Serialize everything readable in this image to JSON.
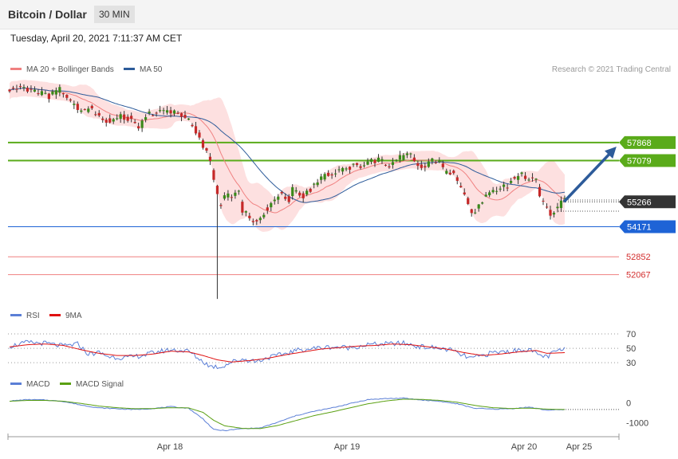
{
  "header": {
    "title": "Bitcoin / Dollar",
    "timeframe": "30 MIN",
    "datetime": "Tuesday, April 20, 2021 7:11:37 AM CET"
  },
  "credit": "Research © 2021 Trading Central",
  "colors": {
    "ma20": "#f08080",
    "ma50": "#2d5b9a",
    "bollinger_fill": "#fde0e0",
    "candle_up": "#3a8a1a",
    "candle_down": "#c62828",
    "resistance": "#5aab1a",
    "pivot": "#1e63d6",
    "support": "#f08080",
    "last_price": "#333333",
    "rsi": "#5b7fd6",
    "rsi_ma": "#e01010",
    "macd": "#5b7fd6",
    "macd_signal": "#5aa012",
    "arrow": "#2d5b9a"
  },
  "chart_data": [
    {
      "type": "candlestick",
      "legend": [
        {
          "label": "MA 20 + Bollinger Bands",
          "color": "#f08080"
        },
        {
          "label": "MA 50",
          "color": "#2d5b9a"
        }
      ],
      "x_ticks": [
        "Apr 18",
        "Apr 19",
        "Apr 20",
        "Apr 25"
      ],
      "ylim": [
        50900,
        60700
      ],
      "levels": [
        {
          "value": 57868,
          "label": "57868",
          "kind": "resistance"
        },
        {
          "value": 57079,
          "label": "57079",
          "kind": "resistance"
        },
        {
          "value": 55266,
          "label": "55266",
          "kind": "last"
        },
        {
          "value": 54171,
          "label": "54171",
          "kind": "pivot"
        },
        {
          "value": 52852,
          "label": "52852",
          "kind": "support"
        },
        {
          "value": 52067,
          "label": "52067",
          "kind": "support"
        }
      ],
      "close_path": [
        [
          0,
          60200
        ],
        [
          8,
          60300
        ],
        [
          14,
          60100
        ],
        [
          22,
          59900
        ],
        [
          28,
          60200
        ],
        [
          34,
          59700
        ],
        [
          40,
          59200
        ],
        [
          45,
          59400
        ],
        [
          50,
          58950
        ],
        [
          56,
          58800
        ],
        [
          62,
          59000
        ],
        [
          68,
          58900
        ],
        [
          72,
          58500
        ],
        [
          76,
          59050
        ],
        [
          80,
          59150
        ],
        [
          88,
          59300
        ],
        [
          94,
          59100
        ],
        [
          100,
          58900
        ],
        [
          104,
          58350
        ],
        [
          108,
          57750
        ],
        [
          112,
          57050
        ],
        [
          114,
          56200
        ],
        [
          116,
          55500
        ],
        [
          118,
          55000
        ],
        [
          120,
          55600
        ],
        [
          124,
          55400
        ],
        [
          128,
          55800
        ],
        [
          130,
          54900
        ],
        [
          134,
          54600
        ],
        [
          138,
          54400
        ],
        [
          140,
          54600
        ],
        [
          144,
          55000
        ],
        [
          148,
          55400
        ],
        [
          152,
          55650
        ],
        [
          156,
          55300
        ],
        [
          158,
          55900
        ],
        [
          164,
          55500
        ],
        [
          168,
          55800
        ],
        [
          172,
          56200
        ],
        [
          176,
          56400
        ],
        [
          180,
          56500
        ],
        [
          184,
          56650
        ],
        [
          188,
          56700
        ],
        [
          192,
          56900
        ],
        [
          196,
          56700
        ],
        [
          200,
          57000
        ],
        [
          206,
          57100
        ],
        [
          212,
          56900
        ],
        [
          218,
          57200
        ],
        [
          224,
          57300
        ],
        [
          228,
          56850
        ],
        [
          232,
          56800
        ],
        [
          236,
          57100
        ],
        [
          240,
          56950
        ],
        [
          244,
          56500
        ],
        [
          248,
          56600
        ],
        [
          252,
          55900
        ],
        [
          256,
          55300
        ],
        [
          258,
          54650
        ],
        [
          262,
          55100
        ],
        [
          266,
          55550
        ],
        [
          270,
          55800
        ],
        [
          274,
          55900
        ],
        [
          278,
          56000
        ],
        [
          282,
          56300
        ],
        [
          286,
          56450
        ],
        [
          290,
          56200
        ],
        [
          294,
          56350
        ],
        [
          296,
          55500
        ],
        [
          300,
          55000
        ],
        [
          302,
          54600
        ],
        [
          306,
          55000
        ],
        [
          310,
          55400
        ]
      ]
    },
    {
      "type": "line",
      "legend": [
        {
          "label": "RSI",
          "color": "#5b7fd6"
        },
        {
          "label": "9MA",
          "color": "#e01010"
        }
      ],
      "ylim": [
        18,
        80
      ],
      "y_ticks": [
        "70",
        "50",
        "30"
      ],
      "y_tick_values": [
        70,
        50,
        30
      ],
      "rsi_path": [
        [
          0,
          53
        ],
        [
          10,
          58
        ],
        [
          20,
          57
        ],
        [
          30,
          53
        ],
        [
          38,
          56
        ],
        [
          44,
          42
        ],
        [
          50,
          44
        ],
        [
          56,
          38
        ],
        [
          66,
          37
        ],
        [
          76,
          41
        ],
        [
          82,
          45
        ],
        [
          90,
          48
        ],
        [
          100,
          46
        ],
        [
          106,
          35
        ],
        [
          112,
          25
        ],
        [
          118,
          24
        ],
        [
          124,
          31
        ],
        [
          130,
          35
        ],
        [
          138,
          32
        ],
        [
          144,
          37
        ],
        [
          150,
          40
        ],
        [
          160,
          47
        ],
        [
          170,
          50
        ],
        [
          180,
          52
        ],
        [
          190,
          51
        ],
        [
          200,
          55
        ],
        [
          210,
          56
        ],
        [
          220,
          57
        ],
        [
          230,
          52
        ],
        [
          236,
          51
        ],
        [
          246,
          48
        ],
        [
          252,
          41
        ],
        [
          258,
          36
        ],
        [
          264,
          40
        ],
        [
          270,
          44
        ],
        [
          280,
          46
        ],
        [
          290,
          49
        ],
        [
          294,
          42
        ],
        [
          300,
          38
        ],
        [
          306,
          47
        ],
        [
          310,
          48
        ]
      ],
      "ma_path": [
        [
          0,
          52
        ],
        [
          10,
          55
        ],
        [
          20,
          56
        ],
        [
          30,
          54
        ],
        [
          40,
          48
        ],
        [
          50,
          43
        ],
        [
          60,
          40
        ],
        [
          70,
          40
        ],
        [
          80,
          42
        ],
        [
          90,
          46
        ],
        [
          100,
          45
        ],
        [
          108,
          40
        ],
        [
          116,
          34
        ],
        [
          124,
          31
        ],
        [
          134,
          33
        ],
        [
          144,
          36
        ],
        [
          154,
          41
        ],
        [
          164,
          45
        ],
        [
          174,
          49
        ],
        [
          184,
          51
        ],
        [
          194,
          53
        ],
        [
          204,
          54
        ],
        [
          214,
          56
        ],
        [
          224,
          55
        ],
        [
          234,
          52
        ],
        [
          244,
          49
        ],
        [
          254,
          44
        ],
        [
          264,
          40
        ],
        [
          274,
          42
        ],
        [
          284,
          45
        ],
        [
          294,
          47
        ],
        [
          300,
          43
        ],
        [
          310,
          44
        ]
      ]
    },
    {
      "type": "line",
      "legend": [
        {
          "label": "MACD",
          "color": "#5b7fd6"
        },
        {
          "label": "MACD Signal",
          "color": "#5aa012"
        }
      ],
      "ylim": [
        -1600,
        600
      ],
      "y_ticks": [
        "0",
        "-1000"
      ],
      "y_tick_values": [
        0,
        -1000
      ],
      "macd_path": [
        [
          0,
          80
        ],
        [
          10,
          150
        ],
        [
          20,
          130
        ],
        [
          30,
          60
        ],
        [
          40,
          -120
        ],
        [
          50,
          -260
        ],
        [
          60,
          -300
        ],
        [
          70,
          -340
        ],
        [
          80,
          -290
        ],
        [
          90,
          -200
        ],
        [
          100,
          -280
        ],
        [
          108,
          -800
        ],
        [
          114,
          -1330
        ],
        [
          120,
          -1380
        ],
        [
          130,
          -1280
        ],
        [
          140,
          -1250
        ],
        [
          150,
          -960
        ],
        [
          160,
          -640
        ],
        [
          170,
          -430
        ],
        [
          180,
          -260
        ],
        [
          190,
          -50
        ],
        [
          200,
          150
        ],
        [
          210,
          200
        ],
        [
          220,
          220
        ],
        [
          230,
          130
        ],
        [
          240,
          70
        ],
        [
          250,
          -60
        ],
        [
          260,
          -280
        ],
        [
          270,
          -320
        ],
        [
          280,
          -300
        ],
        [
          290,
          -220
        ],
        [
          300,
          -370
        ],
        [
          310,
          -350
        ]
      ],
      "signal_path": [
        [
          0,
          70
        ],
        [
          10,
          110
        ],
        [
          20,
          110
        ],
        [
          30,
          70
        ],
        [
          40,
          -40
        ],
        [
          50,
          -170
        ],
        [
          60,
          -250
        ],
        [
          70,
          -300
        ],
        [
          80,
          -290
        ],
        [
          90,
          -250
        ],
        [
          100,
          -260
        ],
        [
          108,
          -480
        ],
        [
          114,
          -870
        ],
        [
          120,
          -1140
        ],
        [
          130,
          -1270
        ],
        [
          140,
          -1280
        ],
        [
          150,
          -1120
        ],
        [
          160,
          -880
        ],
        [
          170,
          -640
        ],
        [
          180,
          -460
        ],
        [
          190,
          -260
        ],
        [
          200,
          -60
        ],
        [
          210,
          80
        ],
        [
          220,
          170
        ],
        [
          230,
          160
        ],
        [
          240,
          110
        ],
        [
          250,
          20
        ],
        [
          260,
          -140
        ],
        [
          270,
          -250
        ],
        [
          280,
          -290
        ],
        [
          290,
          -270
        ],
        [
          300,
          -320
        ],
        [
          310,
          -340
        ]
      ]
    }
  ]
}
